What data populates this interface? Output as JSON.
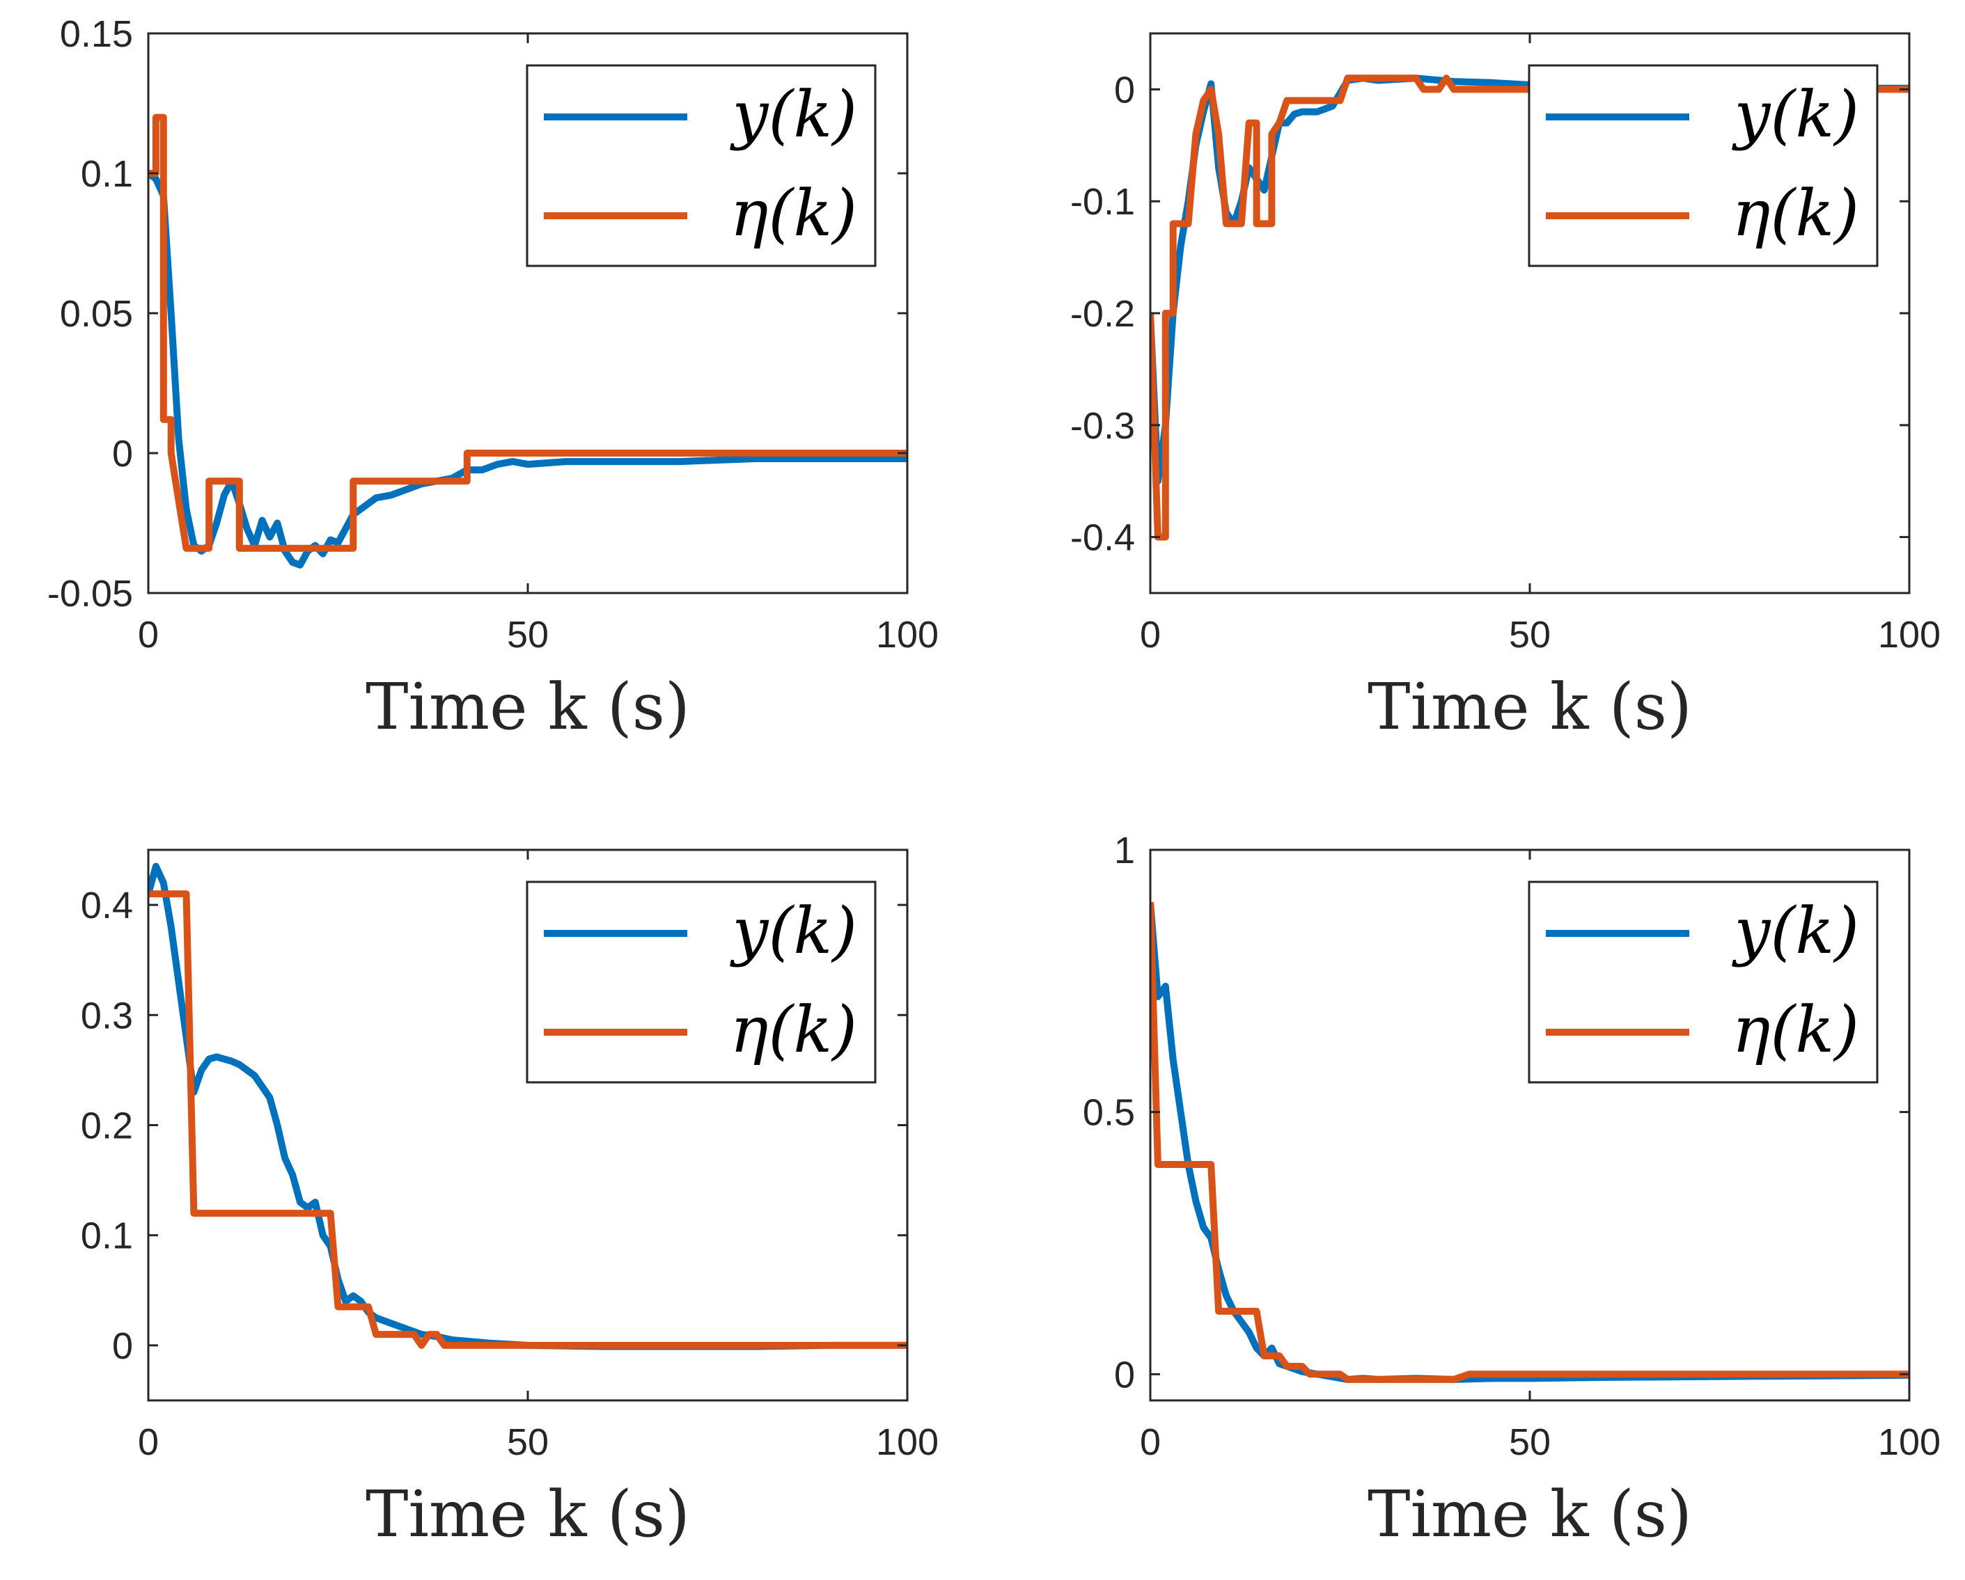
{
  "colors": {
    "y": "#0072BD",
    "eta": "#D95319",
    "axis": "#262626"
  },
  "chart_data": [
    {
      "type": "line",
      "xlabel": "Time k (s)",
      "xlim": [
        0,
        100
      ],
      "ylim": [
        -0.05,
        0.15
      ],
      "xticks": [
        0,
        50,
        100
      ],
      "xtick_labels": [
        "0",
        "50",
        "100"
      ],
      "yticks": [
        -0.05,
        0,
        0.05,
        0.1,
        0.15
      ],
      "ytick_labels": [
        "-0.05",
        "0",
        "0.05",
        "0.1",
        "0.15"
      ],
      "legend": {
        "position": "top-right",
        "entries": [
          "y(k)",
          "η(k)"
        ]
      },
      "series": [
        {
          "name": "y(k)",
          "color": "#0072BD",
          "x": [
            0,
            1,
            2,
            3,
            4,
            5,
            6,
            7,
            8,
            9,
            10,
            11,
            12,
            13,
            14,
            15,
            16,
            17,
            18,
            19,
            20,
            21,
            22,
            23,
            24,
            25,
            26,
            27,
            28,
            29,
            30,
            32,
            34,
            36,
            38,
            40,
            42,
            44,
            46,
            48,
            50,
            55,
            60,
            70,
            80,
            90,
            100
          ],
          "y": [
            0.1,
            0.098,
            0.092,
            0.05,
            0.005,
            -0.02,
            -0.033,
            -0.035,
            -0.033,
            -0.025,
            -0.015,
            -0.01,
            -0.018,
            -0.027,
            -0.033,
            -0.024,
            -0.03,
            -0.025,
            -0.035,
            -0.039,
            -0.04,
            -0.035,
            -0.033,
            -0.036,
            -0.031,
            -0.032,
            -0.027,
            -0.022,
            -0.02,
            -0.018,
            -0.016,
            -0.015,
            -0.013,
            -0.011,
            -0.01,
            -0.009,
            -0.006,
            -0.006,
            -0.004,
            -0.003,
            -0.004,
            -0.003,
            -0.003,
            -0.003,
            -0.002,
            -0.002,
            -0.002
          ]
        },
        {
          "name": "η(k)",
          "color": "#D95319",
          "x": [
            0,
            1,
            1,
            2,
            2,
            3,
            3,
            5,
            5,
            8,
            8,
            9,
            9,
            12,
            12,
            27,
            27,
            41,
            41,
            42,
            42,
            100
          ],
          "y": [
            0.1,
            0.1,
            0.12,
            0.12,
            0.012,
            0.012,
            0.0,
            -0.034,
            -0.034,
            -0.034,
            -0.01,
            -0.01,
            -0.01,
            -0.01,
            -0.034,
            -0.034,
            -0.01,
            -0.01,
            -0.01,
            -0.01,
            0.0,
            0.0
          ]
        }
      ]
    },
    {
      "type": "line",
      "xlabel": "Time k (s)",
      "xlim": [
        0,
        100
      ],
      "ylim": [
        -0.45,
        0.05
      ],
      "xticks": [
        0,
        50,
        100
      ],
      "xtick_labels": [
        "0",
        "50",
        "100"
      ],
      "yticks": [
        -0.4,
        -0.3,
        -0.2,
        -0.1,
        0
      ],
      "ytick_labels": [
        "-0.4",
        "-0.3",
        "-0.2",
        "-0.1",
        "0"
      ],
      "legend": {
        "position": "top-right",
        "entries": [
          "y(k)",
          "η(k)"
        ]
      },
      "series": [
        {
          "name": "y(k)",
          "color": "#0072BD",
          "x": [
            0,
            1,
            2,
            3,
            4,
            5,
            6,
            7,
            8,
            9,
            10,
            11,
            12,
            13,
            14,
            15,
            16,
            17,
            18,
            19,
            20,
            22,
            24,
            26,
            28,
            30,
            35,
            40,
            45,
            50,
            60,
            70,
            80,
            90,
            100
          ],
          "y": [
            -0.2,
            -0.35,
            -0.3,
            -0.2,
            -0.14,
            -0.1,
            -0.05,
            -0.02,
            0.005,
            -0.07,
            -0.11,
            -0.12,
            -0.1,
            -0.07,
            -0.08,
            -0.09,
            -0.06,
            -0.03,
            -0.03,
            -0.022,
            -0.02,
            -0.02,
            -0.015,
            0.008,
            0.01,
            0.008,
            0.01,
            0.007,
            0.006,
            0.004,
            0.003,
            0.002,
            0.002,
            0.001,
            0.001
          ]
        },
        {
          "name": "η(k)",
          "color": "#D95319",
          "x": [
            0,
            1,
            1,
            2,
            2,
            3,
            3,
            5,
            5,
            6,
            7,
            8,
            9,
            10,
            10,
            11,
            11,
            12,
            13,
            14,
            14,
            15,
            15,
            16,
            16,
            17,
            18,
            19,
            25,
            26,
            35,
            36,
            38,
            39,
            40,
            41,
            100
          ],
          "y": [
            -0.2,
            -0.4,
            -0.4,
            -0.4,
            -0.2,
            -0.2,
            -0.12,
            -0.12,
            -0.12,
            -0.04,
            -0.01,
            0.0,
            -0.04,
            -0.12,
            -0.12,
            -0.12,
            -0.12,
            -0.12,
            -0.03,
            -0.03,
            -0.12,
            -0.12,
            -0.12,
            -0.12,
            -0.04,
            -0.03,
            -0.01,
            -0.01,
            -0.01,
            0.01,
            0.01,
            0.0,
            0.0,
            0.01,
            0.0,
            0.0,
            0.0
          ]
        }
      ]
    },
    {
      "type": "line",
      "xlabel": "Time k (s)",
      "xlim": [
        0,
        100
      ],
      "ylim": [
        -0.05,
        0.45
      ],
      "xticks": [
        0,
        50,
        100
      ],
      "xtick_labels": [
        "0",
        "50",
        "100"
      ],
      "yticks": [
        0,
        0.1,
        0.2,
        0.3,
        0.4
      ],
      "ytick_labels": [
        "0",
        "0.1",
        "0.2",
        "0.3",
        "0.4"
      ],
      "legend": {
        "position": "top-right",
        "entries": [
          "y(k)",
          "η(k)"
        ]
      },
      "series": [
        {
          "name": "y(k)",
          "color": "#0072BD",
          "x": [
            0,
            1,
            2,
            3,
            4,
            5,
            6,
            7,
            8,
            9,
            10,
            11,
            12,
            13,
            14,
            15,
            16,
            17,
            18,
            19,
            20,
            21,
            22,
            23,
            24,
            25,
            26,
            27,
            28,
            29,
            30,
            32,
            34,
            36,
            38,
            40,
            45,
            50,
            60,
            70,
            80,
            90,
            100
          ],
          "y": [
            0.41,
            0.435,
            0.42,
            0.38,
            0.33,
            0.28,
            0.23,
            0.25,
            0.26,
            0.262,
            0.26,
            0.258,
            0.255,
            0.25,
            0.245,
            0.235,
            0.225,
            0.2,
            0.17,
            0.155,
            0.13,
            0.125,
            0.13,
            0.1,
            0.09,
            0.06,
            0.04,
            0.045,
            0.04,
            0.03,
            0.025,
            0.02,
            0.015,
            0.01,
            0.008,
            0.005,
            0.002,
            0.0,
            -0.001,
            -0.001,
            -0.001,
            0.0,
            0.0
          ]
        },
        {
          "name": "η(k)",
          "color": "#D95319",
          "x": [
            0,
            1,
            5,
            6,
            6,
            24,
            25,
            27,
            29,
            30,
            35,
            36,
            37,
            38,
            39,
            40,
            100
          ],
          "y": [
            0.41,
            0.41,
            0.41,
            0.12,
            0.12,
            0.12,
            0.035,
            0.035,
            0.035,
            0.01,
            0.01,
            0.0,
            0.01,
            0.01,
            0.0,
            0.0,
            0.0
          ]
        }
      ]
    },
    {
      "type": "line",
      "xlabel": "Time k (s)",
      "xlim": [
        0,
        100
      ],
      "ylim": [
        -0.05,
        1
      ],
      "xticks": [
        0,
        50,
        100
      ],
      "xtick_labels": [
        "0",
        "50",
        "100"
      ],
      "yticks": [
        0,
        0.5,
        1
      ],
      "ytick_labels": [
        "0",
        "0.5",
        "1"
      ],
      "legend": {
        "position": "top-right",
        "entries": [
          "y(k)",
          "η(k)"
        ]
      },
      "series": [
        {
          "name": "y(k)",
          "color": "#0072BD",
          "x": [
            0,
            1,
            2,
            3,
            4,
            5,
            6,
            7,
            8,
            9,
            10,
            11,
            12,
            13,
            14,
            15,
            16,
            17,
            18,
            19,
            20,
            22,
            24,
            26,
            28,
            30,
            35,
            40,
            45,
            50,
            60,
            70,
            80,
            90,
            100
          ],
          "y": [
            0.9,
            0.72,
            0.74,
            0.6,
            0.5,
            0.4,
            0.33,
            0.28,
            0.26,
            0.2,
            0.15,
            0.12,
            0.1,
            0.08,
            0.05,
            0.035,
            0.05,
            0.02,
            0.015,
            0.01,
            0.005,
            0.0,
            -0.005,
            -0.01,
            -0.008,
            -0.01,
            -0.008,
            -0.01,
            -0.008,
            -0.008,
            -0.006,
            -0.005,
            -0.004,
            -0.003,
            -0.002
          ]
        },
        {
          "name": "η(k)",
          "color": "#D95319",
          "x": [
            0,
            1,
            1,
            8,
            9,
            9,
            14,
            15,
            15,
            17,
            18,
            18,
            20,
            21,
            25,
            26,
            26,
            29,
            30,
            31,
            40,
            42,
            100
          ],
          "y": [
            0.9,
            0.4,
            0.4,
            0.4,
            0.12,
            0.12,
            0.12,
            0.035,
            0.035,
            0.035,
            0.015,
            0.015,
            0.015,
            0.0,
            0.0,
            -0.01,
            -0.01,
            -0.01,
            -0.01,
            -0.01,
            -0.01,
            0.0,
            0.0
          ]
        }
      ]
    }
  ]
}
